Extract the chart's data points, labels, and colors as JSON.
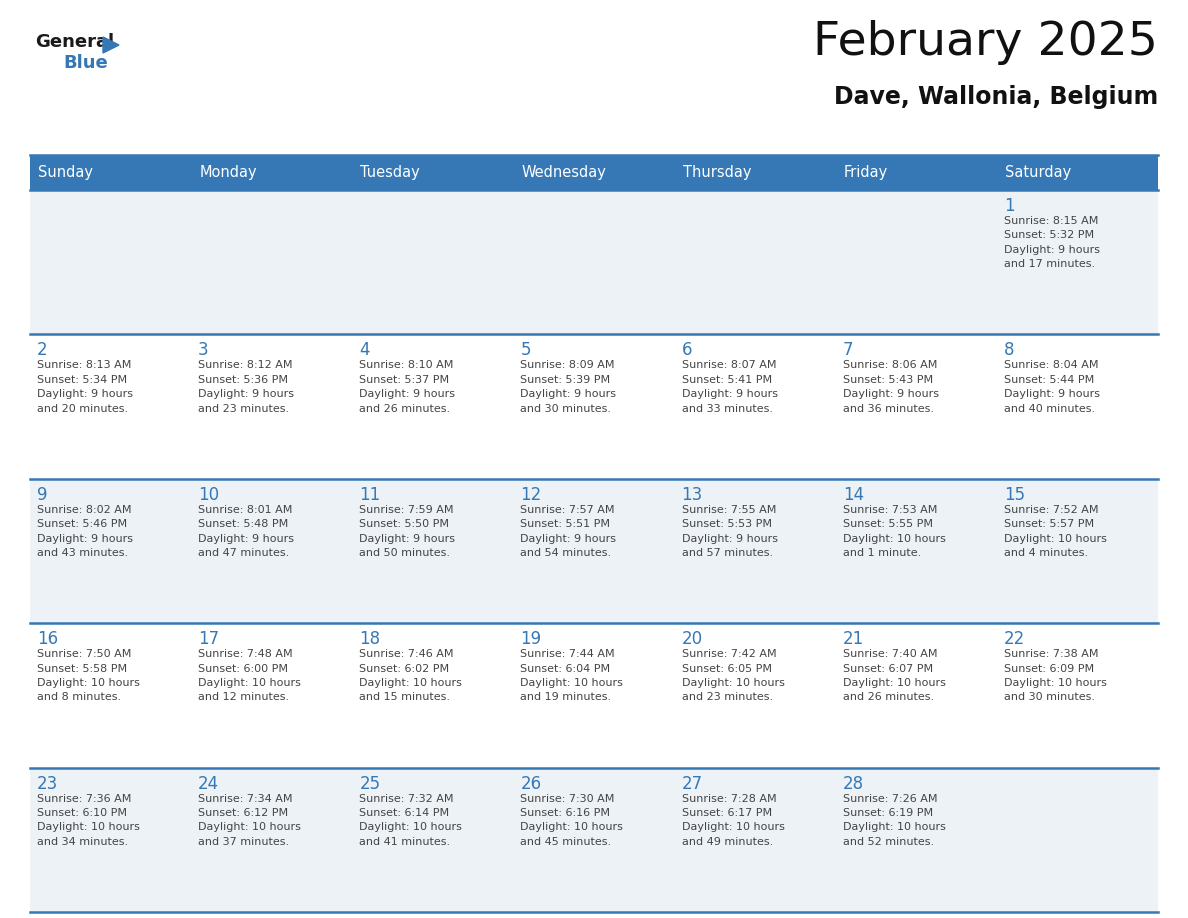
{
  "title": "February 2025",
  "subtitle": "Dave, Wallonia, Belgium",
  "header_bg_color": "#3578b5",
  "header_text_color": "#ffffff",
  "cell_bg_light": "#edf2f7",
  "cell_bg_white": "#ffffff",
  "day_number_color": "#3578b5",
  "info_text_color": "#444444",
  "grid_line_color": "#3578b5",
  "days_of_week": [
    "Sunday",
    "Monday",
    "Tuesday",
    "Wednesday",
    "Thursday",
    "Friday",
    "Saturday"
  ],
  "weeks": [
    [
      {
        "day": null,
        "info": null
      },
      {
        "day": null,
        "info": null
      },
      {
        "day": null,
        "info": null
      },
      {
        "day": null,
        "info": null
      },
      {
        "day": null,
        "info": null
      },
      {
        "day": null,
        "info": null
      },
      {
        "day": "1",
        "info": "Sunrise: 8:15 AM\nSunset: 5:32 PM\nDaylight: 9 hours\nand 17 minutes."
      }
    ],
    [
      {
        "day": "2",
        "info": "Sunrise: 8:13 AM\nSunset: 5:34 PM\nDaylight: 9 hours\nand 20 minutes."
      },
      {
        "day": "3",
        "info": "Sunrise: 8:12 AM\nSunset: 5:36 PM\nDaylight: 9 hours\nand 23 minutes."
      },
      {
        "day": "4",
        "info": "Sunrise: 8:10 AM\nSunset: 5:37 PM\nDaylight: 9 hours\nand 26 minutes."
      },
      {
        "day": "5",
        "info": "Sunrise: 8:09 AM\nSunset: 5:39 PM\nDaylight: 9 hours\nand 30 minutes."
      },
      {
        "day": "6",
        "info": "Sunrise: 8:07 AM\nSunset: 5:41 PM\nDaylight: 9 hours\nand 33 minutes."
      },
      {
        "day": "7",
        "info": "Sunrise: 8:06 AM\nSunset: 5:43 PM\nDaylight: 9 hours\nand 36 minutes."
      },
      {
        "day": "8",
        "info": "Sunrise: 8:04 AM\nSunset: 5:44 PM\nDaylight: 9 hours\nand 40 minutes."
      }
    ],
    [
      {
        "day": "9",
        "info": "Sunrise: 8:02 AM\nSunset: 5:46 PM\nDaylight: 9 hours\nand 43 minutes."
      },
      {
        "day": "10",
        "info": "Sunrise: 8:01 AM\nSunset: 5:48 PM\nDaylight: 9 hours\nand 47 minutes."
      },
      {
        "day": "11",
        "info": "Sunrise: 7:59 AM\nSunset: 5:50 PM\nDaylight: 9 hours\nand 50 minutes."
      },
      {
        "day": "12",
        "info": "Sunrise: 7:57 AM\nSunset: 5:51 PM\nDaylight: 9 hours\nand 54 minutes."
      },
      {
        "day": "13",
        "info": "Sunrise: 7:55 AM\nSunset: 5:53 PM\nDaylight: 9 hours\nand 57 minutes."
      },
      {
        "day": "14",
        "info": "Sunrise: 7:53 AM\nSunset: 5:55 PM\nDaylight: 10 hours\nand 1 minute."
      },
      {
        "day": "15",
        "info": "Sunrise: 7:52 AM\nSunset: 5:57 PM\nDaylight: 10 hours\nand 4 minutes."
      }
    ],
    [
      {
        "day": "16",
        "info": "Sunrise: 7:50 AM\nSunset: 5:58 PM\nDaylight: 10 hours\nand 8 minutes."
      },
      {
        "day": "17",
        "info": "Sunrise: 7:48 AM\nSunset: 6:00 PM\nDaylight: 10 hours\nand 12 minutes."
      },
      {
        "day": "18",
        "info": "Sunrise: 7:46 AM\nSunset: 6:02 PM\nDaylight: 10 hours\nand 15 minutes."
      },
      {
        "day": "19",
        "info": "Sunrise: 7:44 AM\nSunset: 6:04 PM\nDaylight: 10 hours\nand 19 minutes."
      },
      {
        "day": "20",
        "info": "Sunrise: 7:42 AM\nSunset: 6:05 PM\nDaylight: 10 hours\nand 23 minutes."
      },
      {
        "day": "21",
        "info": "Sunrise: 7:40 AM\nSunset: 6:07 PM\nDaylight: 10 hours\nand 26 minutes."
      },
      {
        "day": "22",
        "info": "Sunrise: 7:38 AM\nSunset: 6:09 PM\nDaylight: 10 hours\nand 30 minutes."
      }
    ],
    [
      {
        "day": "23",
        "info": "Sunrise: 7:36 AM\nSunset: 6:10 PM\nDaylight: 10 hours\nand 34 minutes."
      },
      {
        "day": "24",
        "info": "Sunrise: 7:34 AM\nSunset: 6:12 PM\nDaylight: 10 hours\nand 37 minutes."
      },
      {
        "day": "25",
        "info": "Sunrise: 7:32 AM\nSunset: 6:14 PM\nDaylight: 10 hours\nand 41 minutes."
      },
      {
        "day": "26",
        "info": "Sunrise: 7:30 AM\nSunset: 6:16 PM\nDaylight: 10 hours\nand 45 minutes."
      },
      {
        "day": "27",
        "info": "Sunrise: 7:28 AM\nSunset: 6:17 PM\nDaylight: 10 hours\nand 49 minutes."
      },
      {
        "day": "28",
        "info": "Sunrise: 7:26 AM\nSunset: 6:19 PM\nDaylight: 10 hours\nand 52 minutes."
      },
      {
        "day": null,
        "info": null
      }
    ]
  ]
}
